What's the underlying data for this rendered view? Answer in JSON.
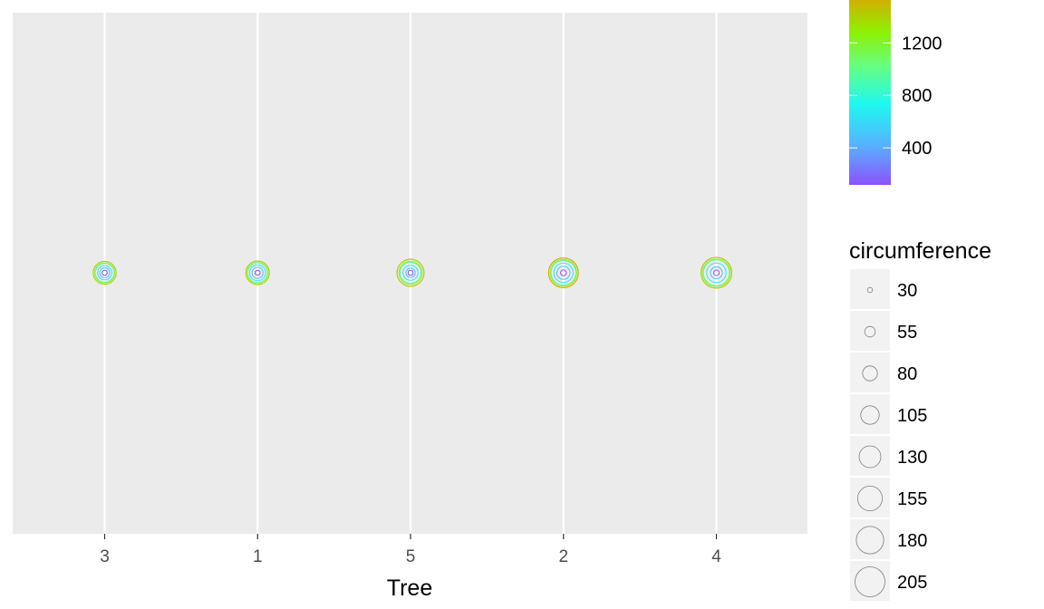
{
  "chart_data": {
    "type": "scatter",
    "xlabel": "Tree",
    "ylabel": "",
    "categories": [
      "3",
      "1",
      "5",
      "2",
      "4"
    ],
    "trees": [
      {
        "tree": "3",
        "circumference": [
          30,
          51,
          75,
          108,
          115,
          139,
          140
        ]
      },
      {
        "tree": "1",
        "circumference": [
          30,
          58,
          87,
          115,
          120,
          142,
          145
        ]
      },
      {
        "tree": "5",
        "circumference": [
          30,
          49,
          81,
          125,
          142,
          174,
          177
        ]
      },
      {
        "tree": "2",
        "circumference": [
          33,
          69,
          111,
          156,
          172,
          203,
          203
        ]
      },
      {
        "tree": "4",
        "circumference": [
          32,
          62,
          112,
          167,
          179,
          209,
          214
        ]
      }
    ],
    "age": [
      118,
      484,
      664,
      1004,
      1231,
      1372,
      1582
    ],
    "color_legend": {
      "title": "",
      "min": 118,
      "max": 1582,
      "ticks": [
        400,
        800,
        1200
      ],
      "tick_labels": [
        "400",
        "800",
        "1200"
      ],
      "palette": "rainbow"
    },
    "size_legend": {
      "title": "circumference",
      "breaks": [
        30,
        55,
        80,
        105,
        130,
        155,
        180,
        205
      ],
      "labels": [
        "30",
        "55",
        "80",
        "105",
        "130",
        "155",
        "180",
        "205"
      ]
    },
    "grid": true,
    "legend_position": "right"
  }
}
